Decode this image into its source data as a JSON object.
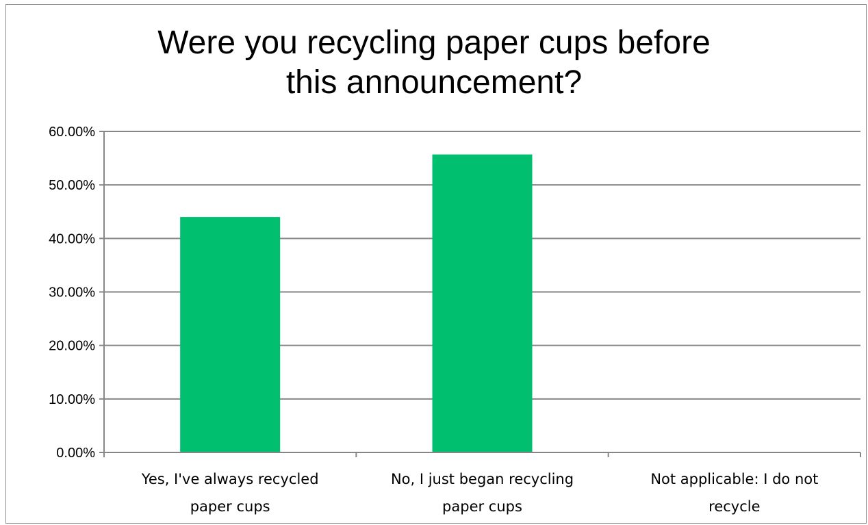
{
  "chart_data": {
    "type": "bar",
    "title": "Were you recycling paper cups before\nthis announcement?",
    "xlabel": "",
    "ylabel": "",
    "categories": [
      [
        "Yes, I've always recycled",
        "paper cups"
      ],
      [
        "No, I just began recycling",
        "paper cups"
      ],
      [
        "Not applicable: I do not",
        "recycle"
      ]
    ],
    "values": [
      44.0,
      55.7,
      0.0
    ],
    "ylim": [
      0,
      60
    ],
    "yticks": [
      "0.00%",
      "10.00%",
      "20.00%",
      "30.00%",
      "40.00%",
      "50.00%",
      "60.00%"
    ],
    "grid": true,
    "legend": "none",
    "bar_color": "#00c070",
    "grid_color": "#868686"
  }
}
